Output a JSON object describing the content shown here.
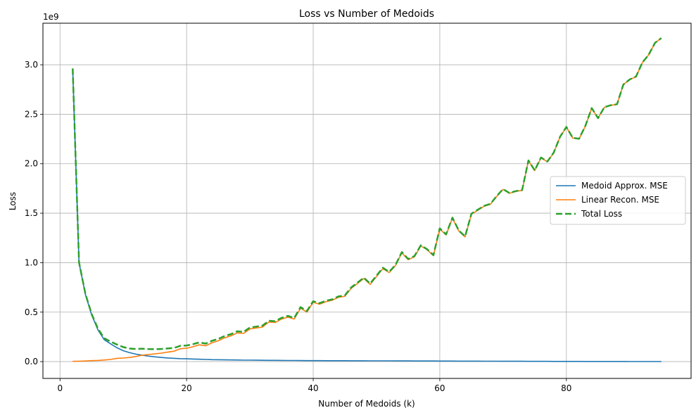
{
  "chart_data": {
    "type": "line",
    "title": "Loss vs Number of Medoids",
    "xlabel": "Number of Medoids (k)",
    "ylabel": "Loss",
    "offset_text": "1e9",
    "xlim": [
      -2.7,
      99.7
    ],
    "ylim": [
      -0.17,
      3.42
    ],
    "xticks": [
      0,
      20,
      40,
      60,
      80
    ],
    "xtick_labels": [
      "0",
      "20",
      "40",
      "60",
      "80"
    ],
    "yticks": [
      0.0,
      0.5,
      1.0,
      1.5,
      2.0,
      2.5,
      3.0
    ],
    "ytick_labels": [
      "0.0",
      "0.5",
      "1.0",
      "1.5",
      "2.0",
      "2.5",
      "3.0"
    ],
    "grid": true,
    "legend_position": "center-right",
    "x": [
      2,
      3,
      4,
      5,
      6,
      7,
      8,
      9,
      10,
      11,
      12,
      13,
      14,
      15,
      16,
      17,
      18,
      19,
      20,
      21,
      22,
      23,
      24,
      25,
      26,
      27,
      28,
      29,
      30,
      31,
      32,
      33,
      34,
      35,
      36,
      37,
      38,
      39,
      40,
      41,
      42,
      43,
      44,
      45,
      46,
      47,
      48,
      49,
      50,
      51,
      52,
      53,
      54,
      55,
      56,
      57,
      58,
      59,
      60,
      61,
      62,
      63,
      64,
      65,
      66,
      67,
      68,
      69,
      70,
      71,
      72,
      73,
      74,
      75,
      76,
      77,
      78,
      79,
      80,
      81,
      82,
      83,
      84,
      85,
      86,
      87,
      88,
      89,
      90,
      91,
      92,
      93,
      94,
      95
    ],
    "series": [
      {
        "name": "Medoid Approx. MSE",
        "color": "#1f77b4",
        "style": "solid",
        "values": [
          2.96,
          1.0,
          0.68,
          0.47,
          0.32,
          0.22,
          0.18,
          0.14,
          0.11,
          0.09,
          0.075,
          0.065,
          0.055,
          0.048,
          0.042,
          0.037,
          0.033,
          0.03,
          0.028,
          0.026,
          0.024,
          0.022,
          0.02,
          0.019,
          0.018,
          0.017,
          0.016,
          0.015,
          0.0145,
          0.014,
          0.0135,
          0.013,
          0.0125,
          0.012,
          0.0115,
          0.011,
          0.0105,
          0.01,
          0.0098,
          0.0096,
          0.0094,
          0.0092,
          0.009,
          0.0088,
          0.0086,
          0.0084,
          0.0082,
          0.008,
          0.0078,
          0.0076,
          0.0074,
          0.0072,
          0.007,
          0.0068,
          0.0066,
          0.0064,
          0.0062,
          0.006,
          0.0058,
          0.0056,
          0.0054,
          0.0052,
          0.005,
          0.0048,
          0.0046,
          0.0044,
          0.0042,
          0.004,
          0.0038,
          0.0036,
          0.0034,
          0.0032,
          0.003,
          0.0028,
          0.0026,
          0.0024,
          0.0022,
          0.002,
          0.0019,
          0.0018,
          0.0017,
          0.0016,
          0.0015,
          0.0014,
          0.0013,
          0.0012,
          0.0011,
          0.001,
          0.0009,
          0.0008,
          0.0007,
          0.0006,
          0.0005,
          0.0004
        ]
      },
      {
        "name": "Linear Recon. MSE",
        "color": "#ff7f0e",
        "style": "solid",
        "values": [
          0.003,
          0.004,
          0.006,
          0.01,
          0.012,
          0.016,
          0.022,
          0.033,
          0.036,
          0.042,
          0.052,
          0.065,
          0.072,
          0.078,
          0.086,
          0.096,
          0.105,
          0.13,
          0.135,
          0.15,
          0.17,
          0.16,
          0.19,
          0.21,
          0.24,
          0.26,
          0.29,
          0.285,
          0.33,
          0.34,
          0.35,
          0.4,
          0.395,
          0.43,
          0.45,
          0.43,
          0.54,
          0.5,
          0.6,
          0.58,
          0.605,
          0.62,
          0.65,
          0.66,
          0.74,
          0.79,
          0.84,
          0.78,
          0.86,
          0.94,
          0.9,
          0.97,
          1.1,
          1.03,
          1.06,
          1.17,
          1.13,
          1.07,
          1.34,
          1.28,
          1.45,
          1.32,
          1.26,
          1.49,
          1.53,
          1.57,
          1.59,
          1.67,
          1.74,
          1.7,
          1.72,
          1.73,
          2.03,
          1.93,
          2.06,
          2.02,
          2.11,
          2.27,
          2.37,
          2.26,
          2.25,
          2.38,
          2.56,
          2.46,
          2.57,
          2.59,
          2.6,
          2.8,
          2.85,
          2.88,
          3.02,
          3.1,
          3.22,
          3.27
        ]
      },
      {
        "name": "Total Loss",
        "color": "#2ca02c",
        "style": "dashed",
        "values": [
          2.963,
          1.004,
          0.686,
          0.48,
          0.332,
          0.236,
          0.202,
          0.173,
          0.146,
          0.132,
          0.127,
          0.13,
          0.127,
          0.126,
          0.128,
          0.133,
          0.138,
          0.16,
          0.163,
          0.176,
          0.194,
          0.182,
          0.21,
          0.229,
          0.258,
          0.277,
          0.306,
          0.3,
          0.345,
          0.354,
          0.364,
          0.413,
          0.408,
          0.442,
          0.462,
          0.441,
          0.551,
          0.51,
          0.61,
          0.59,
          0.614,
          0.629,
          0.659,
          0.669,
          0.749,
          0.798,
          0.848,
          0.788,
          0.868,
          0.948,
          0.907,
          0.977,
          1.107,
          1.037,
          1.067,
          1.176,
          1.136,
          1.076,
          1.346,
          1.286,
          1.455,
          1.325,
          1.265,
          1.495,
          1.535,
          1.574,
          1.594,
          1.674,
          1.744,
          1.704,
          1.723,
          1.733,
          2.033,
          1.933,
          2.063,
          2.022,
          2.112,
          2.272,
          2.372,
          2.262,
          2.252,
          2.382,
          2.562,
          2.461,
          2.571,
          2.591,
          2.601,
          2.801,
          2.851,
          2.881,
          3.021,
          3.101,
          3.221,
          3.27
        ]
      }
    ]
  }
}
